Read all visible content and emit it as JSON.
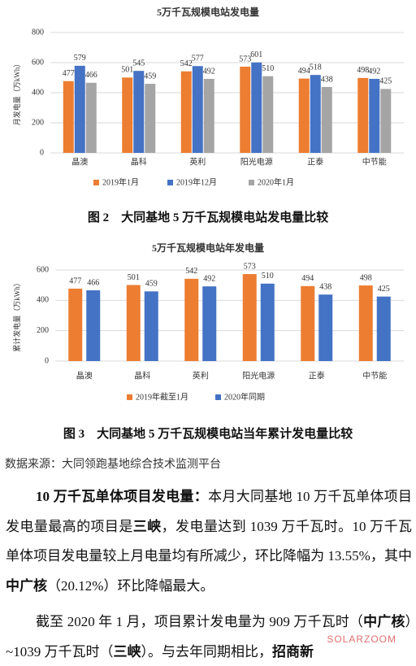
{
  "chart_data": [
    {
      "type": "bar",
      "title": "5万千瓦规模电站发电量",
      "y_label": "月发电量（万kWh）",
      "categories": [
        "晶澳",
        "晶科",
        "英利",
        "阳光电源",
        "正泰",
        "中节能"
      ],
      "series": [
        {
          "name": "2019年1月",
          "color": "#ed7d31",
          "values": [
            477,
            501,
            542,
            573,
            494,
            498
          ]
        },
        {
          "name": "2019年12月",
          "color": "#4472c4",
          "values": [
            579,
            545,
            577,
            601,
            518,
            492
          ]
        },
        {
          "name": "2020年1月",
          "color": "#a5a5a5",
          "values": [
            466,
            459,
            492,
            510,
            438,
            425
          ]
        }
      ],
      "ylim": [
        0,
        800
      ],
      "yticks": [
        0,
        200,
        400,
        600,
        800
      ],
      "grid": true,
      "data_labels": true,
      "legend": "bottom"
    },
    {
      "type": "bar",
      "title": "5万千瓦规模电站年发电量",
      "y_label": "累计发电量（万kWh）",
      "categories": [
        "晶澳",
        "晶科",
        "英利",
        "阳光电源",
        "正泰",
        "中节能"
      ],
      "series": [
        {
          "name": "2019年截至1月",
          "color": "#ed7d31",
          "values": [
            477,
            501,
            542,
            573,
            494,
            498
          ]
        },
        {
          "name": "2020年同期",
          "color": "#4472c4",
          "values": [
            466,
            459,
            492,
            510,
            438,
            425
          ]
        }
      ],
      "ylim": [
        0,
        600
      ],
      "yticks": [
        0,
        200,
        400,
        600
      ],
      "grid": true,
      "data_labels": true,
      "legend": "bottom"
    }
  ],
  "document": {
    "captions": [
      "图 2　大同基地 5 万千瓦规模电站发电量比较",
      "图 3　大同基地 5 万千瓦规模电站当年累计发电量比较"
    ],
    "source": "数据来源：大同领跑基地综合技术监测平台",
    "paragraphs": [
      [
        {
          "text": "10 万千瓦单体项目发电量：",
          "bold": true
        },
        {
          "text": "本月大同基地 10 万千瓦单体项目发电量最高的项目是"
        },
        {
          "text": "三峡",
          "bold": true
        },
        {
          "text": "，发电量达到 1039 万千瓦时。10 万千瓦单体项目发电量较上月电量均有所减少，环比降幅为 13.55%，其中"
        },
        {
          "text": "中广核",
          "bold": true
        },
        {
          "text": "（20.12%）环比降幅最大。"
        }
      ],
      [
        {
          "text": "截至 2020 年 1 月，项目累计发电量为 909 万千瓦时（"
        },
        {
          "text": "中广核",
          "bold": true
        },
        {
          "text": "）~1039 万千瓦时（"
        },
        {
          "text": "三峡",
          "bold": true
        },
        {
          "text": "）。与去年同期相比，"
        },
        {
          "text": "招商新",
          "bold": true
        }
      ]
    ],
    "watermark": "SOLARZOOM"
  }
}
